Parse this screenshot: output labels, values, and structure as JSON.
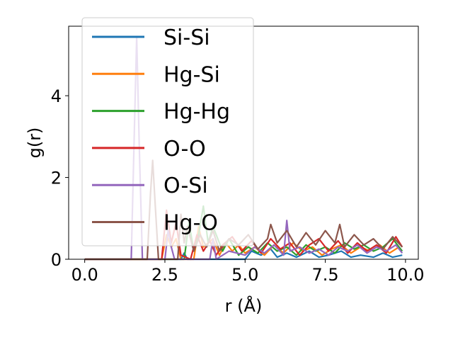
{
  "chart_data": {
    "type": "line",
    "title": "",
    "xlabel": "r (Å)",
    "ylabel": "g(r)",
    "xlim": [
      -0.5,
      10.4
    ],
    "ylim": [
      0,
      5.7
    ],
    "xticks": [
      0.0,
      2.5,
      5.0,
      7.5,
      10.0
    ],
    "xtick_labels": [
      "0.0",
      "2.5",
      "5.0",
      "7.5",
      "10.0"
    ],
    "yticks": [
      0,
      2,
      4
    ],
    "ytick_labels": [
      "0",
      "2",
      "4"
    ],
    "grid": false,
    "legend_position": "upper-left",
    "series": [
      {
        "name": "Si-Si",
        "color": "#1f77b4",
        "x": [
          0.0,
          1.5,
          2.0,
          2.5,
          3.0,
          3.1,
          3.2,
          4.0,
          4.5,
          5.0,
          5.2,
          5.5,
          5.8,
          6.0,
          6.3,
          6.6,
          7.0,
          7.3,
          7.6,
          8.0,
          8.3,
          8.6,
          9.0,
          9.3,
          9.6,
          9.9
        ],
        "y": [
          0,
          0,
          0,
          0,
          0,
          0.15,
          0,
          0,
          0,
          0,
          0.2,
          0.1,
          0.25,
          0.05,
          0.15,
          0.05,
          0.2,
          0.05,
          0.1,
          0.2,
          0.05,
          0.1,
          0.05,
          0.15,
          0.05,
          0.1
        ]
      },
      {
        "name": "Hg-Si",
        "color": "#ff7f0e",
        "x": [
          0.0,
          2.4,
          2.55,
          2.7,
          2.85,
          3.0,
          3.4,
          3.55,
          3.7,
          4.0,
          4.2,
          4.4,
          4.6,
          4.8,
          5.0,
          5.3,
          5.6,
          5.9,
          6.2,
          6.5,
          6.8,
          7.1,
          7.4,
          7.7,
          8.0,
          8.3,
          8.6,
          8.9,
          9.2,
          9.5,
          9.8
        ],
        "y": [
          0,
          0,
          0.6,
          0.3,
          0.5,
          0,
          0,
          0.8,
          0.3,
          0.5,
          0.1,
          0.4,
          0.2,
          0.35,
          0.15,
          0.3,
          0.1,
          0.35,
          0.15,
          0.4,
          0.2,
          0.3,
          0.1,
          0.25,
          0.35,
          0.15,
          0.3,
          0.2,
          0.35,
          0.15,
          0.3
        ]
      },
      {
        "name": "Hg-Hg",
        "color": "#2ca02c",
        "x": [
          0.0,
          3.1,
          3.25,
          3.4,
          3.55,
          3.7,
          3.85,
          4.0,
          4.3,
          4.5,
          4.8,
          5.1,
          5.4,
          5.7,
          6.0,
          6.3,
          6.6,
          6.9,
          7.2,
          7.5,
          7.8,
          8.1,
          8.4,
          8.7,
          9.0,
          9.3,
          9.6,
          9.9
        ],
        "y": [
          0,
          0,
          0.9,
          0.2,
          0.6,
          1.3,
          0.4,
          0.8,
          0.2,
          0.5,
          0.1,
          0.3,
          0.15,
          0.4,
          0.2,
          0.3,
          0.1,
          0.35,
          0.2,
          0.3,
          0.15,
          0.4,
          0.25,
          0.35,
          0.2,
          0.3,
          0.5,
          0.2
        ]
      },
      {
        "name": "O-O",
        "color": "#d62728",
        "x": [
          0.0,
          2.4,
          2.55,
          2.7,
          2.85,
          3.0,
          3.3,
          3.5,
          3.7,
          3.9,
          4.1,
          4.3,
          4.6,
          4.9,
          5.2,
          5.5,
          5.8,
          6.1,
          6.4,
          6.7,
          7.0,
          7.3,
          7.6,
          7.9,
          8.2,
          8.5,
          8.8,
          9.1,
          9.4,
          9.7,
          9.9
        ],
        "y": [
          0,
          0,
          1.2,
          0.4,
          0.9,
          0.1,
          0,
          0.6,
          0.2,
          0.45,
          0.1,
          0.35,
          0.55,
          0.2,
          0.45,
          0.15,
          0.5,
          0.25,
          0.4,
          0.1,
          0.35,
          0.5,
          0.2,
          0.45,
          0.15,
          0.4,
          0.2,
          0.35,
          0.15,
          0.55,
          0.3
        ]
      },
      {
        "name": "O-Si",
        "color": "#9467bd",
        "x": [
          0.0,
          1.45,
          1.55,
          1.62,
          1.7,
          1.8,
          2.5,
          2.6,
          2.7,
          2.8,
          3.9,
          4.0,
          4.1,
          4.5,
          5.0,
          5.3,
          5.6,
          5.9,
          6.2,
          6.3,
          6.4,
          6.7,
          7.0,
          7.3,
          7.6,
          7.9,
          8.2,
          8.5,
          8.8,
          9.1,
          9.4,
          9.7,
          9.9
        ],
        "y": [
          0,
          0,
          3.2,
          5.45,
          2.8,
          0,
          0,
          0.7,
          0.3,
          0,
          0,
          0.5,
          0,
          0.2,
          0.1,
          0.3,
          0.15,
          0.35,
          0.1,
          0.95,
          0.2,
          0.3,
          0.15,
          0.25,
          0.1,
          0.3,
          0.2,
          0.35,
          0.15,
          0.3,
          0.2,
          0.35,
          0.15
        ]
      },
      {
        "name": "Hg-O",
        "color": "#8c564b",
        "x": [
          0.0,
          1.95,
          2.05,
          2.12,
          2.2,
          2.3,
          2.9,
          3.0,
          3.1,
          3.2,
          3.4,
          3.6,
          3.8,
          4.0,
          4.2,
          4.5,
          4.8,
          5.1,
          5.4,
          5.7,
          5.8,
          6.0,
          6.3,
          6.6,
          6.9,
          7.2,
          7.5,
          7.8,
          7.95,
          8.1,
          8.4,
          8.7,
          9.0,
          9.3,
          9.6,
          9.9
        ],
        "y": [
          0,
          0,
          1.6,
          2.42,
          1.3,
          0,
          0,
          1.1,
          0.4,
          0.8,
          0.2,
          0.6,
          0.3,
          0.7,
          0.2,
          0.5,
          0.35,
          0.6,
          0.25,
          0.5,
          0.85,
          0.4,
          0.7,
          0.3,
          0.65,
          0.35,
          0.7,
          0.4,
          0.85,
          0.3,
          0.6,
          0.35,
          0.5,
          0.25,
          0.55,
          0.3
        ]
      }
    ]
  }
}
